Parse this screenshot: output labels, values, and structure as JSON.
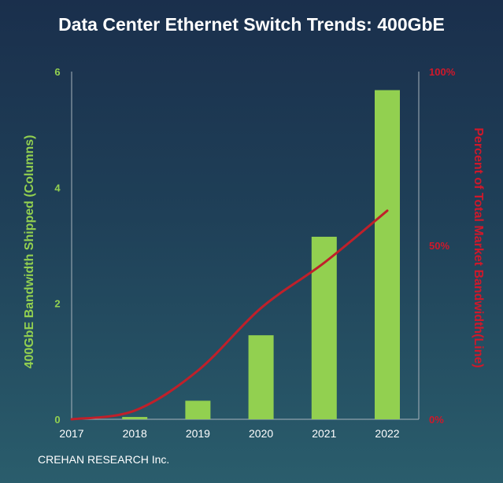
{
  "chart_data": {
    "type": "bar+line",
    "title": "Data Center Ethernet Switch Trends: 400GbE",
    "categories": [
      "2017",
      "2018",
      "2019",
      "2020",
      "2021",
      "2022"
    ],
    "series": [
      {
        "name": "400GbE Bandwidth Shipped (Columns)",
        "type": "bar",
        "axis": "left",
        "values": [
          0,
          0.04,
          0.32,
          1.45,
          3.15,
          5.68
        ],
        "color": "#92d050"
      },
      {
        "name": "Percent of Total Market Bandwidth(Line)",
        "type": "line",
        "axis": "right",
        "values": [
          0,
          2.5,
          14,
          32,
          45,
          60
        ],
        "color": "#c0202a"
      }
    ],
    "ylabel": "400GbE  Bandwidth Shipped (Columns)",
    "y2label": "Percent of Total Market Bandwidth(Line)",
    "ylim": [
      0,
      6
    ],
    "y2lim": [
      0,
      100
    ],
    "yticks": [
      "0",
      "2",
      "4",
      "6"
    ],
    "y2ticks": [
      "0%",
      "50%",
      "100%"
    ],
    "grid": false,
    "footer": "CREHAN RESEARCH Inc."
  }
}
